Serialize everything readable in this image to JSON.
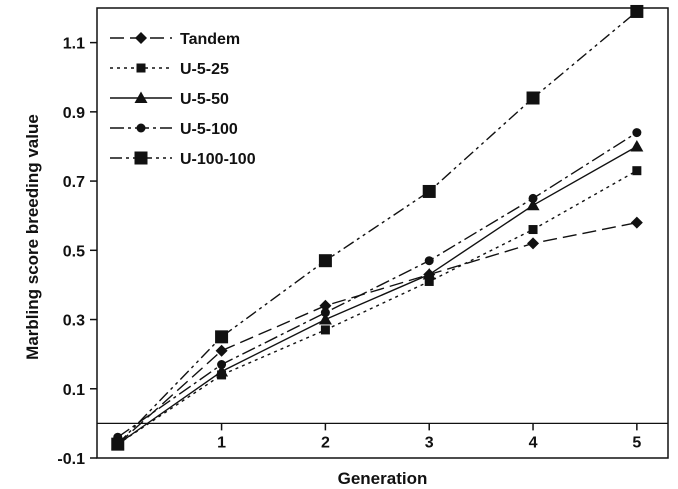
{
  "chart_data": {
    "type": "line",
    "title": "",
    "xlabel": "Generation",
    "ylabel": "Marbling score breeding value",
    "xlim": [
      -0.2,
      5.3
    ],
    "ylim": [
      -0.1,
      1.2
    ],
    "x_ticks": [
      1,
      2,
      3,
      4,
      5
    ],
    "y_ticks": [
      -0.1,
      0.1,
      0.3,
      0.5,
      0.7,
      0.9,
      1.1
    ],
    "x_tick_labels": [
      "1",
      "2",
      "3",
      "4",
      "5"
    ],
    "y_tick_labels": [
      "-0.1",
      "0.1",
      "0.3",
      "0.5",
      "0.7",
      "0.9",
      "1.1"
    ],
    "zero_line": 0.0,
    "grid": false,
    "legend_position": "top-left",
    "x": [
      0,
      1,
      2,
      3,
      4,
      5
    ],
    "series": [
      {
        "name": "Tandem",
        "values": [
          -0.06,
          0.21,
          0.34,
          0.43,
          0.52,
          0.58
        ],
        "marker": "diamond",
        "dash": "long-dash"
      },
      {
        "name": "U-5-25",
        "values": [
          -0.06,
          0.14,
          0.27,
          0.41,
          0.56,
          0.73
        ],
        "marker": "square-small",
        "dash": "dotted"
      },
      {
        "name": "U-5-50",
        "values": [
          -0.06,
          0.15,
          0.3,
          0.43,
          0.63,
          0.8
        ],
        "marker": "triangle",
        "dash": "solid"
      },
      {
        "name": "U-5-100",
        "values": [
          -0.04,
          0.17,
          0.32,
          0.47,
          0.65,
          0.84
        ],
        "marker": "circle",
        "dash": "dash-dot"
      },
      {
        "name": "U-100-100",
        "values": [
          -0.06,
          0.25,
          0.47,
          0.67,
          0.94,
          1.19
        ],
        "marker": "square-large",
        "dash": "dash-dot-dot"
      }
    ]
  }
}
